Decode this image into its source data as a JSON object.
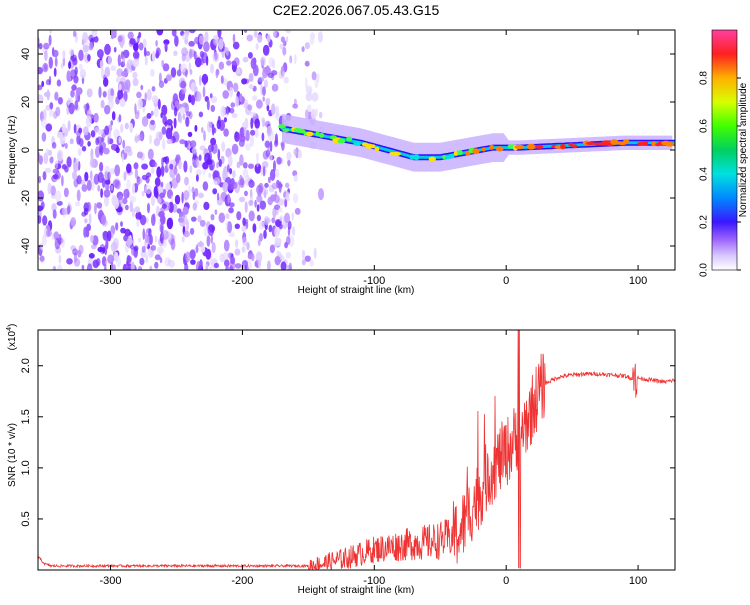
{
  "title": "C2E2.2026.067.05.43.G15",
  "chart_data": [
    {
      "type": "heatmap",
      "name": "spectrogram",
      "xlabel": "Height of straight line (km)",
      "ylabel": "Frequency (Hz)",
      "xlim": [
        -355,
        128
      ],
      "ylim": [
        -50,
        50
      ],
      "xticks": [
        -300,
        -200,
        -100,
        0,
        100
      ],
      "yticks": [
        -40,
        -20,
        0,
        20,
        40
      ],
      "colorbar": {
        "label": "Normalized spectral amplitude",
        "range": [
          0,
          1
        ],
        "ticks": [
          0.0,
          0.2,
          0.4,
          0.6,
          0.8
        ]
      },
      "noise_region_x": [
        -355,
        -165
      ],
      "signal_track": {
        "x": [
          -170,
          -150,
          -130,
          -110,
          -90,
          -70,
          -50,
          -30,
          -10,
          10,
          30,
          50,
          70,
          90,
          110,
          128
        ],
        "freq_hz": [
          9,
          7,
          5,
          3,
          0,
          -3,
          -3,
          -1,
          1,
          1,
          1.5,
          2,
          2.5,
          3,
          3,
          3
        ]
      }
    },
    {
      "type": "line",
      "name": "snr",
      "xlabel": "Height of straight line (km)",
      "ylabel": "SNR (10 * v/v)",
      "scale_label": "(x10",
      "scale_exponent": "4",
      "xlim": [
        -355,
        128
      ],
      "ylim": [
        0,
        2.35
      ],
      "xticks": [
        -300,
        -200,
        -100,
        0,
        100
      ],
      "yticks": [
        0.5,
        1.0,
        1.5,
        2.0
      ],
      "series": [
        {
          "name": "SNR",
          "color": "#ee3333",
          "x": [
            -355,
            -350,
            -345,
            -330,
            -300,
            -250,
            -200,
            -170,
            -150,
            -140,
            -130,
            -120,
            -110,
            -100,
            -90,
            -80,
            -70,
            -60,
            -50,
            -40,
            -35,
            -30,
            -25,
            -20,
            -15,
            -10,
            -5,
            0,
            5,
            10,
            15,
            20,
            25,
            30,
            40,
            50,
            60,
            70,
            80,
            90,
            95,
            97,
            100,
            110,
            120,
            128
          ],
          "y": [
            0.13,
            0.06,
            0.04,
            0.04,
            0.04,
            0.04,
            0.04,
            0.04,
            0.04,
            0.06,
            0.09,
            0.12,
            0.16,
            0.2,
            0.22,
            0.24,
            0.26,
            0.27,
            0.29,
            0.33,
            0.38,
            0.5,
            0.65,
            0.75,
            0.9,
            1.0,
            1.08,
            1.15,
            1.25,
            1.35,
            1.45,
            1.6,
            1.75,
            1.83,
            1.89,
            1.91,
            1.92,
            1.92,
            1.91,
            1.9,
            1.88,
            1.85,
            1.88,
            1.86,
            1.84,
            1.86
          ]
        }
      ]
    }
  ]
}
